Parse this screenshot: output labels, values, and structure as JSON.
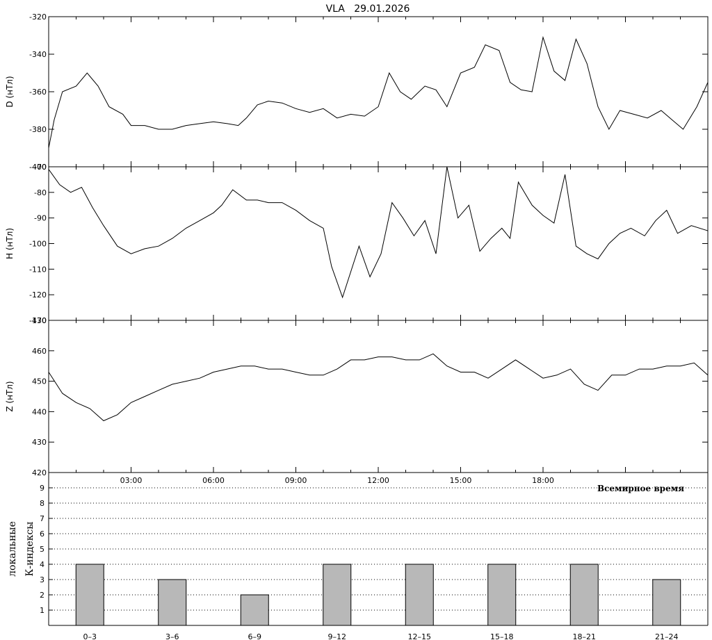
{
  "title": "VLA   29.01.2026",
  "utc_label": "Всемирное время",
  "k_axis_label": "К-индексы",
  "k_axis_label2": "локальные",
  "time_ticks": [
    "03:00",
    "06:00",
    "09:00",
    "12:00",
    "15:00",
    "18:00"
  ],
  "chart_data": [
    {
      "type": "line",
      "ylabel": "D (нТл)",
      "ylim": [
        -400,
        -320
      ],
      "yticks": [
        "-320",
        "-340",
        "-360",
        "-380",
        "-400"
      ],
      "x_hours": [
        0,
        0.2,
        0.5,
        1,
        1.4,
        1.8,
        2.2,
        2.7,
        3,
        3.5,
        4,
        4.5,
        5,
        5.5,
        6,
        6.5,
        6.9,
        7.2,
        7.6,
        8,
        8.5,
        9,
        9.5,
        10,
        10.5,
        11,
        11.5,
        12,
        12.4,
        12.8,
        13.2,
        13.7,
        14.1,
        14.5,
        15,
        15.5,
        15.9,
        16.4,
        16.8,
        17.2,
        17.6,
        18,
        18.4,
        18.8,
        19.2,
        19.6,
        20,
        20.4,
        20.8,
        21.3,
        21.8,
        22.3,
        22.7,
        23.1,
        23.6,
        24
      ],
      "values": [
        -390,
        -375,
        -360,
        -357,
        -350,
        -357,
        -368,
        -372,
        -378,
        -378,
        -380,
        -380,
        -378,
        -377,
        -376,
        -377,
        -378,
        -374,
        -367,
        -365,
        -366,
        -369,
        -371,
        -369,
        -374,
        -372,
        -373,
        -368,
        -350,
        -360,
        -364,
        -357,
        -359,
        -368,
        -350,
        -347,
        -335,
        -338,
        -355,
        -359,
        -360,
        -331,
        -349,
        -354,
        -332,
        -345,
        -368,
        -380,
        -370,
        -372,
        -374,
        -370,
        -375,
        -380,
        -368,
        -355
      ]
    },
    {
      "type": "line",
      "ylabel": "H (нТл)",
      "ylim": [
        -130,
        -70
      ],
      "yticks": [
        "-70",
        "-80",
        "-90",
        "-100",
        "-110",
        "-120",
        "-130"
      ],
      "x_hours": [
        0,
        0.4,
        0.8,
        1.2,
        1.6,
        2,
        2.5,
        3,
        3.5,
        4,
        4.5,
        5,
        5.5,
        6,
        6.3,
        6.7,
        7.2,
        7.6,
        8,
        8.5,
        9,
        9.5,
        10,
        10.3,
        10.7,
        11.3,
        11.7,
        12.1,
        12.5,
        12.9,
        13.3,
        13.7,
        14.1,
        14.5,
        14.9,
        15.3,
        15.7,
        16.1,
        16.5,
        16.8,
        17.1,
        17.6,
        18,
        18.4,
        18.8,
        19.2,
        19.6,
        20,
        20.4,
        20.8,
        21.2,
        21.7,
        22.1,
        22.5,
        22.9,
        23.4,
        24
      ],
      "values": [
        -71,
        -77,
        -80,
        -78,
        -86,
        -93,
        -101,
        -104,
        -102,
        -101,
        -98,
        -94,
        -91,
        -88,
        -85,
        -79,
        -83,
        -83,
        -84,
        -84,
        -87,
        -91,
        -94,
        -109,
        -121,
        -101,
        -113,
        -104,
        -84,
        -90,
        -97,
        -91,
        -104,
        -70,
        -90,
        -85,
        -103,
        -98,
        -94,
        -98,
        -76,
        -85,
        -89,
        -92,
        -73,
        -101,
        -104,
        -106,
        -100,
        -96,
        -94,
        -97,
        -91,
        -87,
        -96,
        -93,
        -95
      ]
    },
    {
      "type": "line",
      "ylabel": "Z (нТл)",
      "ylim": [
        420,
        470
      ],
      "yticks": [
        "470",
        "460",
        "450",
        "440",
        "430",
        "420"
      ],
      "x_hours": [
        0,
        0.5,
        1,
        1.5,
        2,
        2.5,
        3,
        3.5,
        4,
        4.5,
        5,
        5.5,
        6,
        6.5,
        7,
        7.5,
        8,
        8.5,
        9,
        9.5,
        10,
        10.5,
        11,
        11.5,
        12,
        12.5,
        13,
        13.5,
        14,
        14.5,
        15,
        15.5,
        16,
        16.5,
        17,
        17.5,
        18,
        18.5,
        19,
        19.5,
        20,
        20.5,
        21,
        21.5,
        22,
        22.5,
        23,
        23.5,
        24
      ],
      "values": [
        453,
        446,
        443,
        441,
        437,
        439,
        443,
        445,
        447,
        449,
        450,
        451,
        453,
        454,
        455,
        455,
        454,
        454,
        453,
        452,
        452,
        454,
        457,
        457,
        458,
        458,
        457,
        457,
        459,
        455,
        453,
        453,
        451,
        454,
        457,
        454,
        451,
        452,
        454,
        449,
        447,
        452,
        452,
        454,
        454,
        455,
        455,
        456,
        452
      ]
    },
    {
      "type": "bar",
      "categories": [
        "0–3",
        "3–6",
        "6–9",
        "9–12",
        "12–15",
        "15–18",
        "18–21",
        "21–24"
      ],
      "values": [
        4,
        3,
        2,
        4,
        4,
        4,
        4,
        3
      ],
      "ylim": [
        0,
        10
      ],
      "yticks": [
        "1",
        "2",
        "3",
        "4",
        "5",
        "6",
        "7",
        "8",
        "9"
      ],
      "grid": true,
      "bar_color": "#b8b8b8"
    }
  ]
}
